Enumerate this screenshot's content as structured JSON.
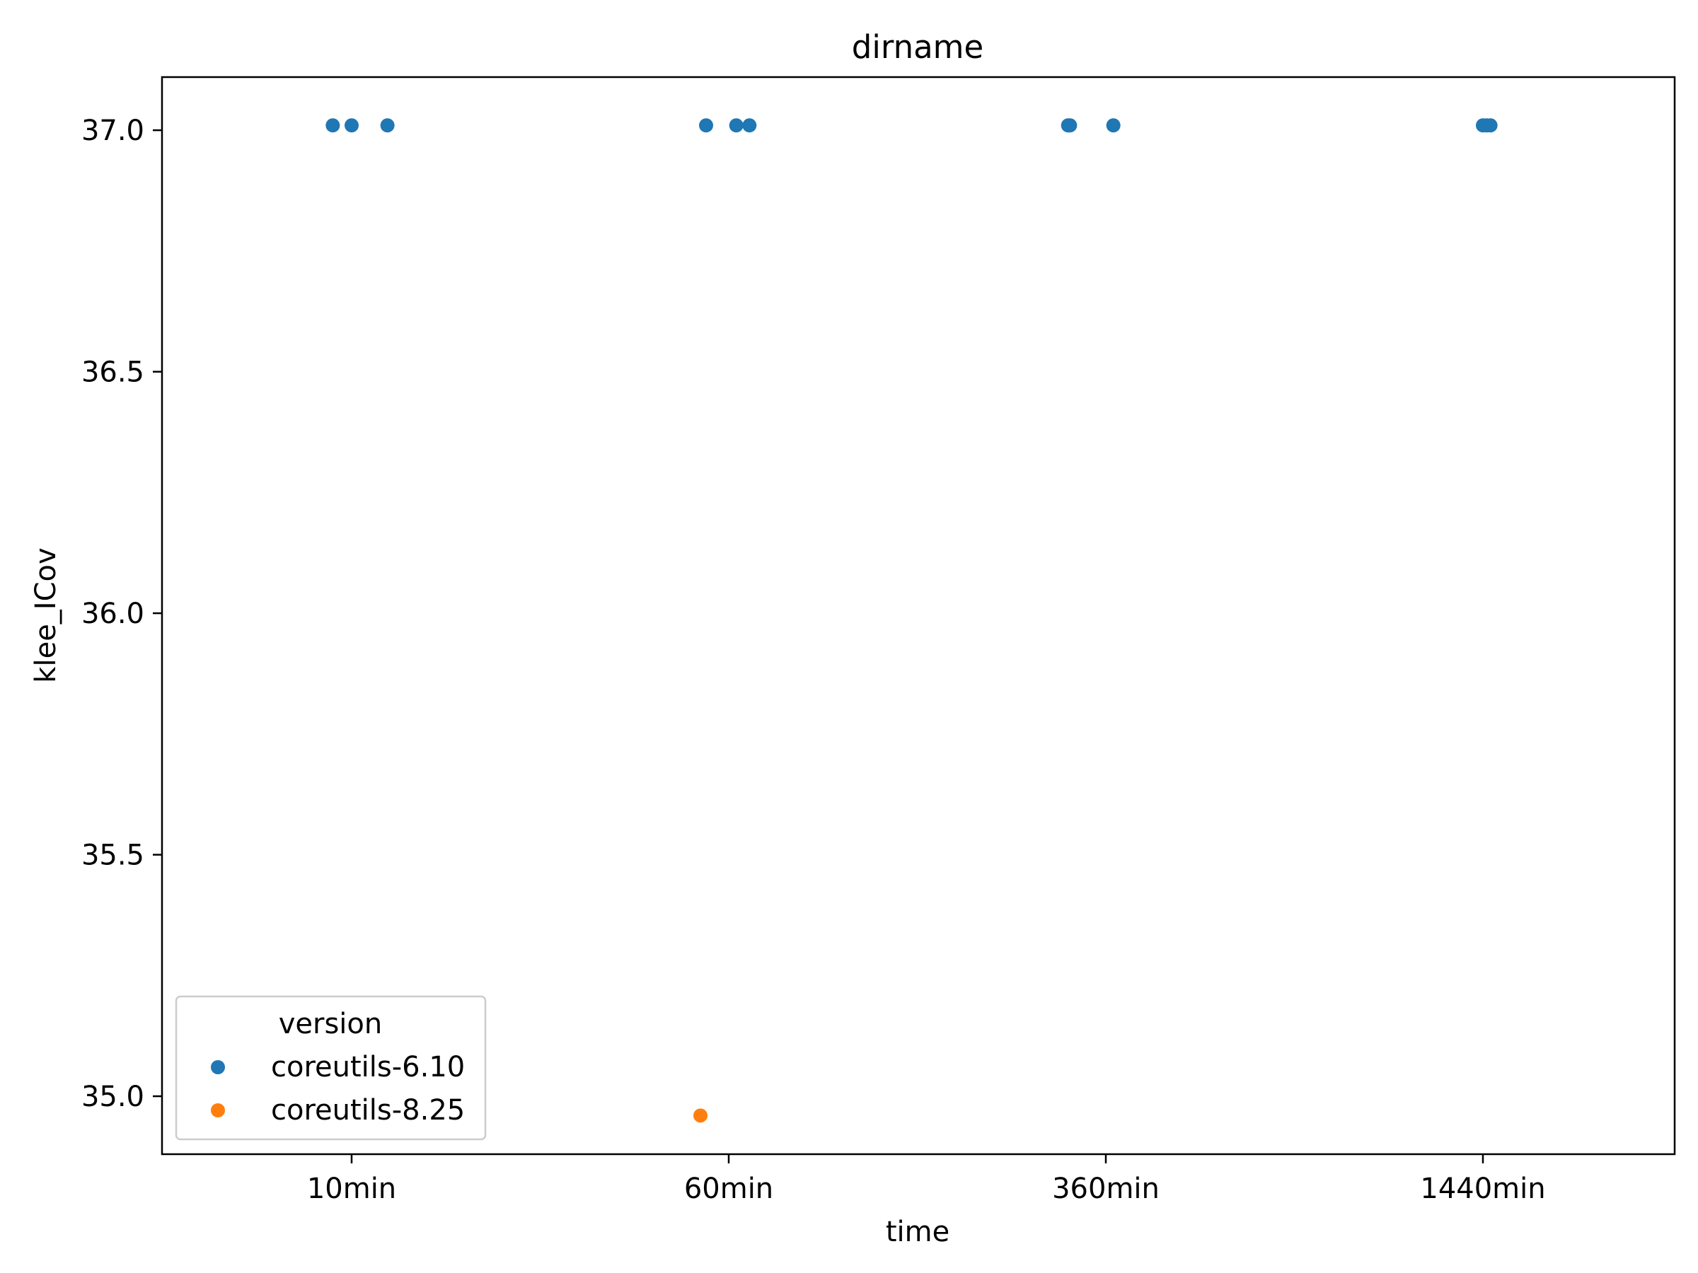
{
  "chart_data": {
    "type": "scatter",
    "title": "dirname",
    "xlabel": "time",
    "ylabel": "klee_ICov",
    "categories": [
      "10min",
      "60min",
      "360min",
      "1440min"
    ],
    "ylim": [
      34.88,
      37.11
    ],
    "yticks": [
      "35.0",
      "35.5",
      "36.0",
      "36.5",
      "37.0"
    ],
    "grid": false,
    "legend": {
      "title": "version",
      "placement": "lower-left",
      "entries": [
        "coreutils-6.10",
        "coreutils-8.25"
      ]
    },
    "series": [
      {
        "name": "coreutils-6.10",
        "color": "#1f77b4",
        "points": [
          {
            "x": "10min",
            "jitter": -0.05,
            "y": 37.01
          },
          {
            "x": "10min",
            "jitter": 0.0,
            "y": 37.01
          },
          {
            "x": "10min",
            "jitter": 0.095,
            "y": 37.01
          },
          {
            "x": "60min",
            "jitter": -0.06,
            "y": 37.01
          },
          {
            "x": "60min",
            "jitter": 0.02,
            "y": 37.01
          },
          {
            "x": "60min",
            "jitter": 0.055,
            "y": 37.01
          },
          {
            "x": "360min",
            "jitter": -0.1,
            "y": 37.01
          },
          {
            "x": "360min",
            "jitter": -0.095,
            "y": 37.01
          },
          {
            "x": "360min",
            "jitter": 0.02,
            "y": 37.01
          },
          {
            "x": "1440min",
            "jitter": 0.0,
            "y": 37.01
          },
          {
            "x": "1440min",
            "jitter": 0.01,
            "y": 37.01
          },
          {
            "x": "1440min",
            "jitter": 0.02,
            "y": 37.01
          }
        ]
      },
      {
        "name": "coreutils-8.25",
        "color": "#ff7f0e",
        "points": [
          {
            "x": "60min",
            "jitter": -0.075,
            "y": 34.96
          }
        ]
      }
    ]
  }
}
